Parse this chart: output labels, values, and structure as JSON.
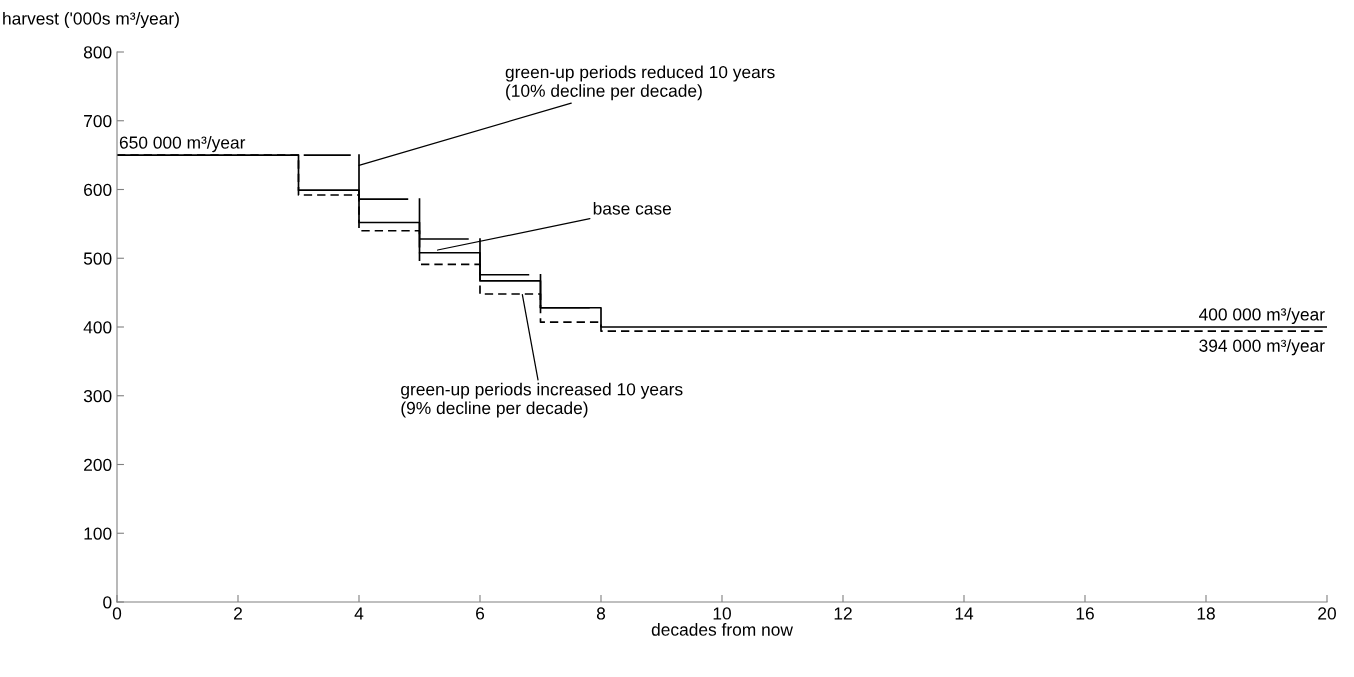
{
  "chart_data": {
    "type": "step",
    "ylabel": "harvest ('000s m³/year)",
    "xlabel": "decades from now",
    "xlim": [
      0,
      20
    ],
    "xticks": [
      0,
      2,
      4,
      6,
      8,
      10,
      12,
      14,
      16,
      18,
      20
    ],
    "ylim": [
      0,
      800
    ],
    "yticks": [
      0,
      100,
      200,
      300,
      400,
      500,
      600,
      700,
      800
    ],
    "grid": false,
    "legend": false,
    "series": [
      {
        "color": "#000000",
        "line_style": "solid",
        "x": [
          0,
          3,
          4,
          5,
          6,
          7,
          8,
          20
        ],
        "values": [
          650,
          599,
          552,
          508,
          467,
          428,
          400,
          400
        ]
      },
      {
        "color": "#000000",
        "line_style": "dashed",
        "x": [
          0,
          3,
          4,
          5,
          6,
          7,
          8,
          20
        ],
        "values": [
          650,
          592,
          540,
          491,
          448,
          407,
          394,
          394
        ]
      },
      {
        "type": "line",
        "color": "#000000",
        "line_style": "solid",
        "x": [
          3.1,
          3.85,
          3.9,
          4,
          4,
          4.8,
          4.9,
          5,
          5,
          5.8,
          5.9,
          6,
          6,
          6.8,
          6.9,
          7,
          7,
          7.8
        ],
        "values": [
          650,
          650,
          null,
          650,
          586,
          586,
          null,
          586,
          528,
          528,
          null,
          528,
          476,
          476,
          null,
          476,
          428,
          428
        ]
      }
    ],
    "annotations": [
      {
        "text": "green-up periods reduced 10 years\n(10% decline per decade)",
        "x": 4,
        "y": 635
      },
      {
        "text": "base case",
        "x": 5.3,
        "y": 512
      },
      {
        "text": "green-up periods increased 10 years\n(9% decline per decade)",
        "x": 6.7,
        "y": 447
      },
      {
        "text": "650 000 m³/year",
        "x": 0,
        "y": 650
      },
      {
        "text": "400 000 m³/year",
        "x": 20,
        "y": 400
      },
      {
        "text": "394 000 m³/year",
        "x": 20,
        "y": 394
      }
    ]
  }
}
